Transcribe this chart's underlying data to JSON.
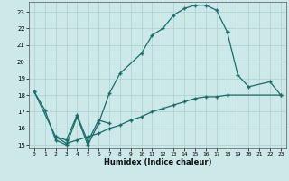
{
  "xlabel": "Humidex (Indice chaleur)",
  "background_color": "#cce8e8",
  "grid_color": "#aacfcf",
  "line_color": "#1a6b6b",
  "xlim": [
    -0.5,
    23.5
  ],
  "ylim": [
    14.8,
    23.6
  ],
  "yticks": [
    15,
    16,
    17,
    18,
    19,
    20,
    21,
    22,
    23
  ],
  "xticks": [
    0,
    1,
    2,
    3,
    4,
    5,
    6,
    7,
    8,
    9,
    10,
    11,
    12,
    13,
    14,
    15,
    16,
    17,
    18,
    19,
    20,
    21,
    22,
    23
  ],
  "line1_x": [
    0,
    1,
    2,
    3,
    4,
    5,
    6,
    7,
    8,
    10,
    11,
    12,
    13,
    14,
    15,
    16,
    17,
    18
  ],
  "line1_y": [
    18.2,
    17.1,
    15.3,
    15.0,
    16.7,
    15.0,
    16.3,
    18.1,
    19.3,
    20.5,
    21.6,
    22.0,
    22.8,
    23.2,
    23.4,
    23.4,
    23.1,
    21.8
  ],
  "line2_x": [
    0,
    2,
    3,
    4,
    5,
    6,
    7,
    18,
    19,
    20,
    22,
    23
  ],
  "line2_y": [
    18.2,
    15.5,
    15.3,
    16.8,
    15.2,
    16.5,
    16.3,
    21.8,
    19.2,
    18.5,
    18.8,
    18.0
  ],
  "line3_x": [
    2,
    3,
    4,
    5,
    6,
    7,
    8,
    9,
    10,
    11,
    12,
    13,
    14,
    15,
    16,
    17,
    18,
    23
  ],
  "line3_y": [
    15.5,
    15.1,
    15.3,
    15.5,
    15.7,
    16.0,
    16.2,
    16.5,
    16.7,
    17.0,
    17.2,
    17.4,
    17.6,
    17.8,
    17.9,
    17.9,
    18.0,
    18.0
  ]
}
